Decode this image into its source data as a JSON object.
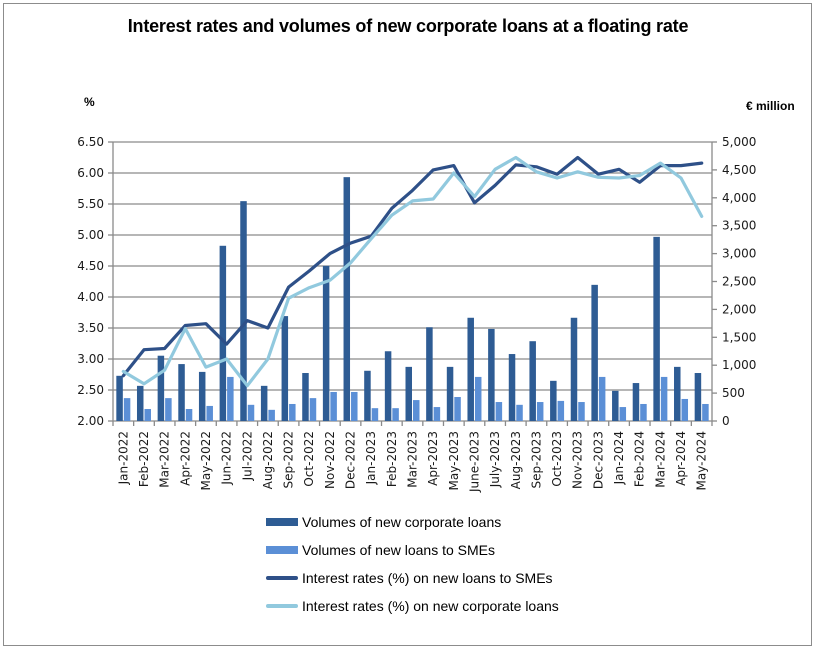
{
  "chart_data": {
    "type": "bar",
    "title": "Interest rates and volumes of new corporate loans at a floating rate",
    "left_axis_label": "%",
    "right_axis_label": "€ million",
    "left_ylim": [
      2.0,
      6.5
    ],
    "left_ticks": [
      "2.00",
      "2.50",
      "3.00",
      "3.50",
      "4.00",
      "4.50",
      "5.00",
      "5.50",
      "6.00",
      "6.50"
    ],
    "right_ylim": [
      0,
      5000
    ],
    "right_ticks": [
      "0",
      "500",
      "1,000",
      "1,500",
      "2,000",
      "2,500",
      "3,000",
      "3,500",
      "4,000",
      "4,500",
      "5,000"
    ],
    "grid": true,
    "legend_position": "bottom",
    "categories": [
      "Jan-2022",
      "Feb-2022",
      "Mar-2022",
      "Apr-2022",
      "May-2022",
      "Jun-2022",
      "Jul-2022",
      "Aug-2022",
      "Sep-2022",
      "Oct-2022",
      "Nov-2022",
      "Dec-2022",
      "Jan-2023",
      "Feb-2023",
      "Mar-2023",
      "Apr-2023",
      "May-2023",
      "June-2023",
      "July-2023",
      "Aug-2023",
      "Sep-2023",
      "Oct-2023",
      "Nov-2023",
      "Dec-2023",
      "Jan-2024",
      "Feb-2024",
      "Mar-2024",
      "Apr-2024",
      "May-2024"
    ],
    "series": [
      {
        "name": "Volumes of new corporate loans",
        "type": "bar",
        "axis": "right",
        "color": "#2e5c94",
        "values": [
          810,
          630,
          1170,
          1020,
          880,
          3140,
          3940,
          630,
          1880,
          860,
          2780,
          4370,
          900,
          1250,
          970,
          1680,
          970,
          1850,
          1650,
          1200,
          1430,
          720,
          1850,
          2440,
          540,
          680,
          3300,
          970,
          860
        ]
      },
      {
        "name": "Volumes of new loans to SMEs",
        "type": "bar",
        "axis": "right",
        "color": "#5b8fd6",
        "values": [
          410,
          215,
          410,
          215,
          270,
          790,
          290,
          200,
          305,
          410,
          520,
          520,
          230,
          230,
          375,
          250,
          430,
          790,
          340,
          290,
          340,
          360,
          340,
          790,
          250,
          305,
          790,
          395,
          305
        ]
      },
      {
        "name": "Interest rates (%) on new loans to SMEs",
        "type": "line",
        "axis": "left",
        "color": "#2e5088",
        "values": [
          2.73,
          3.15,
          3.17,
          3.54,
          3.57,
          3.24,
          3.62,
          3.5,
          4.16,
          4.42,
          4.7,
          4.87,
          4.98,
          5.43,
          5.72,
          6.05,
          6.12,
          5.52,
          5.8,
          6.13,
          6.1,
          5.98,
          6.25,
          5.98,
          6.06,
          5.85,
          6.12,
          6.12,
          6.16
        ]
      },
      {
        "name": "Interest rates (%) on new corporate loans",
        "type": "line",
        "axis": "left",
        "color": "#91c9de",
        "values": [
          2.8,
          2.6,
          2.82,
          3.49,
          2.87,
          3.0,
          2.57,
          3.0,
          3.98,
          4.15,
          4.27,
          4.55,
          4.94,
          5.32,
          5.55,
          5.58,
          6.0,
          5.62,
          6.06,
          6.25,
          6.02,
          5.92,
          6.02,
          5.93,
          5.92,
          5.96,
          6.16,
          5.92,
          5.3
        ]
      }
    ]
  }
}
